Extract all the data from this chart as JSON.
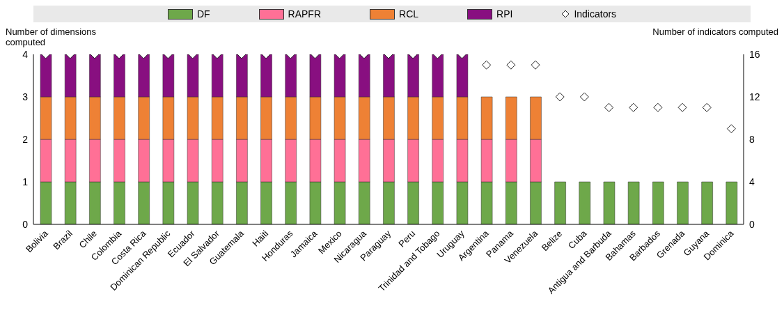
{
  "chart_data": {
    "type": "bar",
    "stacked": true,
    "ylabel": "Number of dimensions computed",
    "y2label": "Number of indicators computed",
    "categories": [
      "Bolivia",
      "Brazil",
      "Chile",
      "Colombia",
      "Costa Rica",
      "Dominican Republic",
      "Ecuador",
      "El Salvador",
      "Guatemala",
      "Haiti",
      "Honduras",
      "Jamaica",
      "Mexico",
      "Nicaragua",
      "Paraguay",
      "Peru",
      "Trinidad and Tobago",
      "Uruguay",
      "Argentina",
      "Panama",
      "Venezuela",
      "Belize",
      "Cuba",
      "Antigua and Barbuda",
      "Bahamas",
      "Barbados",
      "Grenada",
      "Guyana",
      "Dominica"
    ],
    "series": [
      {
        "name": "DF",
        "color": "#6ea84a",
        "values": [
          1,
          1,
          1,
          1,
          1,
          1,
          1,
          1,
          1,
          1,
          1,
          1,
          1,
          1,
          1,
          1,
          1,
          1,
          1,
          1,
          1,
          1,
          1,
          1,
          1,
          1,
          1,
          1,
          1
        ]
      },
      {
        "name": "RAPFR",
        "color": "#ff7096",
        "values": [
          1,
          1,
          1,
          1,
          1,
          1,
          1,
          1,
          1,
          1,
          1,
          1,
          1,
          1,
          1,
          1,
          1,
          1,
          1,
          1,
          1,
          0,
          0,
          0,
          0,
          0,
          0,
          0,
          0
        ]
      },
      {
        "name": "RCL",
        "color": "#ee8135",
        "values": [
          1,
          1,
          1,
          1,
          1,
          1,
          1,
          1,
          1,
          1,
          1,
          1,
          1,
          1,
          1,
          1,
          1,
          1,
          1,
          1,
          1,
          0,
          0,
          0,
          0,
          0,
          0,
          0,
          0
        ]
      },
      {
        "name": "RPI",
        "color": "#880f80",
        "values": [
          1,
          1,
          1,
          1,
          1,
          1,
          1,
          1,
          1,
          1,
          1,
          1,
          1,
          1,
          1,
          1,
          1,
          1,
          0,
          0,
          0,
          0,
          0,
          0,
          0,
          0,
          0,
          0,
          0
        ]
      },
      {
        "name": "Indicators",
        "type": "scatter",
        "axis": "y2",
        "marker": "diamond",
        "color": "#ffffff",
        "values": [
          16,
          16,
          16,
          16,
          16,
          16,
          16,
          16,
          16,
          16,
          16,
          16,
          16,
          16,
          16,
          16,
          16,
          16,
          15,
          15,
          15,
          12,
          12,
          11,
          11,
          11,
          11,
          11,
          9
        ]
      }
    ],
    "ylim": [
      0,
      4
    ],
    "yticks": [
      0,
      1,
      2,
      3,
      4
    ],
    "y2lim": [
      0,
      16
    ],
    "y2ticks": [
      0,
      4,
      8,
      12,
      16
    ],
    "legend": "top",
    "grid": false
  }
}
